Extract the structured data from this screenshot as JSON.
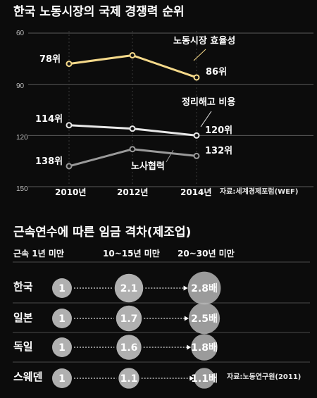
{
  "chart_data": [
    {
      "type": "line",
      "title": "한국 노동시장의 국제 경쟁력 순위",
      "x": [
        "2010년",
        "2012년",
        "2014년"
      ],
      "ylim": [
        150,
        60
      ],
      "yticks": [
        "60",
        "90",
        "120",
        "150"
      ],
      "series": [
        {
          "name": "노동시장 효율성",
          "values": [
            78,
            73,
            86
          ],
          "start_label": "78위",
          "end_label": "86위",
          "color": "#f5d98a"
        },
        {
          "name": "정리해고 비용",
          "values": [
            114,
            116,
            120
          ],
          "start_label": "114위",
          "end_label": "120위",
          "color": "#e8e8e8"
        },
        {
          "name": "노사협력",
          "values": [
            138,
            128,
            132
          ],
          "start_label": "138위",
          "end_label": "132위",
          "color": "#9a9a9a"
        }
      ],
      "source": "자료:세계경제포럼(WEF)"
    },
    {
      "type": "bubble",
      "title": "근속연수에 따른 임금 격차(제조업)",
      "categories": [
        "근속 1년 미만",
        "10~15년 미만",
        "20~30년 미만"
      ],
      "series": [
        {
          "name": "한국",
          "values": [
            1,
            2.1,
            2.8
          ],
          "labels": [
            "1",
            "2.1",
            "2.8배"
          ]
        },
        {
          "name": "일본",
          "values": [
            1,
            1.7,
            2.5
          ],
          "labels": [
            "1",
            "1.7",
            "2.5배"
          ]
        },
        {
          "name": "독일",
          "values": [
            1,
            1.6,
            1.8
          ],
          "labels": [
            "1",
            "1.6",
            "1.8배"
          ]
        },
        {
          "name": "스웨덴",
          "values": [
            1,
            1.1,
            1.1
          ],
          "labels": [
            "1",
            "1.1",
            "1.1배"
          ]
        }
      ],
      "source": "자료:노동연구원(2011)"
    }
  ]
}
